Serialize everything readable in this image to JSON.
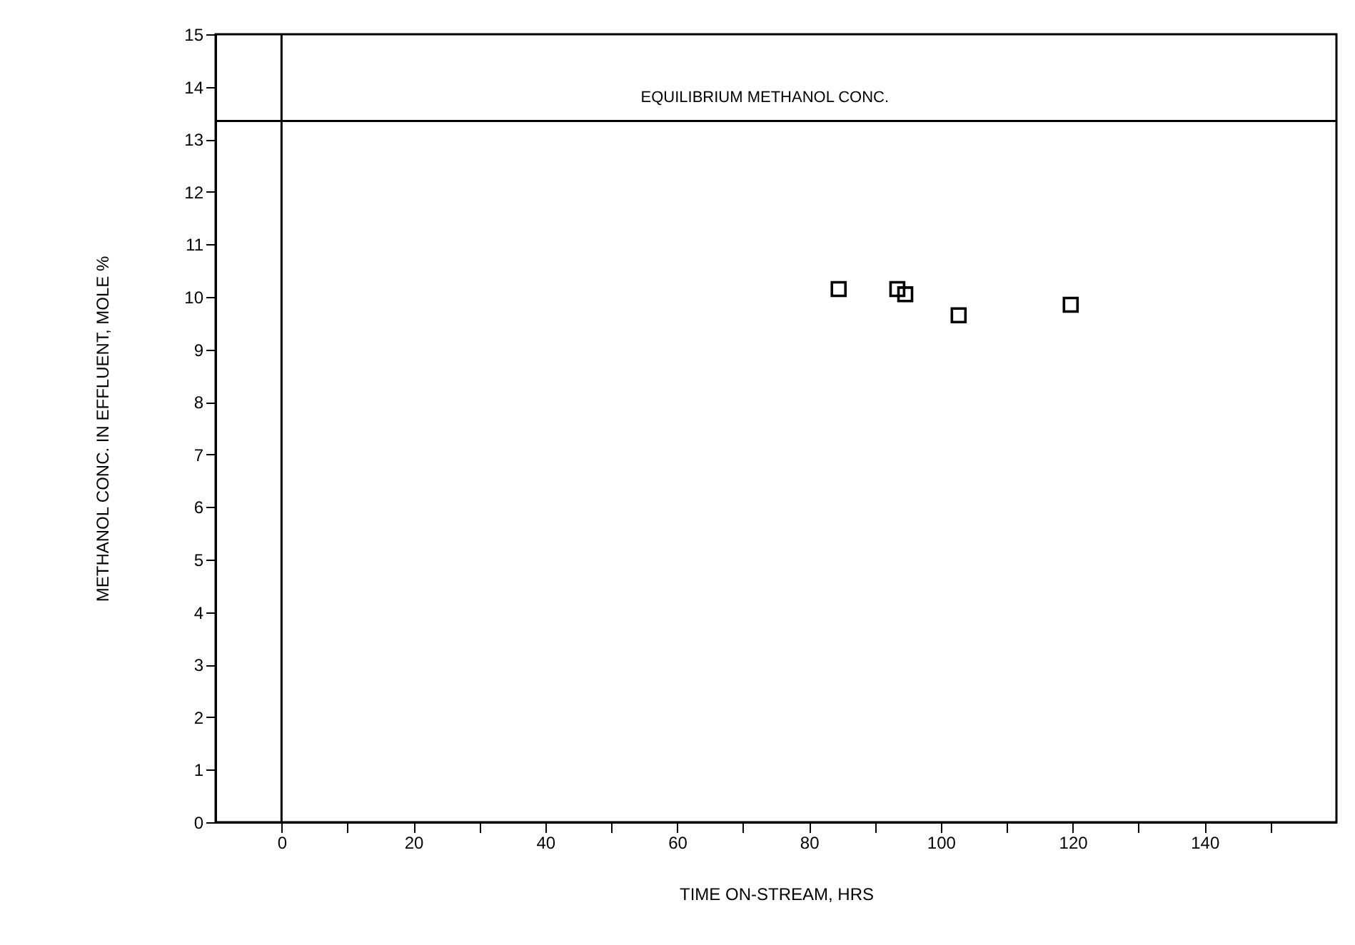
{
  "chart_data": {
    "type": "scatter",
    "xlabel": "TIME ON-STREAM, HRS",
    "ylabel": "METHANOL CONC. IN EFFLUENT, MOLE %",
    "x": [
      84.5,
      93.4,
      94.6,
      102.7,
      119.7
    ],
    "values": [
      10.15,
      10.15,
      10.05,
      9.65,
      9.85
    ],
    "color": "#000000",
    "marker": "square",
    "grid": false,
    "xlim": [
      -10,
      160
    ],
    "xticks": [
      0,
      {
        "value": 10,
        "label": null
      },
      20,
      {
        "value": 30,
        "label": null
      },
      40,
      {
        "value": 50,
        "label": null
      },
      60,
      {
        "value": 70,
        "label": null
      },
      80,
      {
        "value": 90,
        "label": null
      },
      100,
      {
        "value": 110,
        "label": null
      },
      120,
      {
        "value": 130,
        "label": null
      },
      140,
      {
        "value": 150,
        "label": null
      }
    ],
    "ylim": [
      0,
      15
    ],
    "yticks": [
      0,
      1,
      2,
      3,
      4,
      5,
      6,
      7,
      8,
      9,
      10,
      11,
      12,
      13,
      14,
      15
    ],
    "ref_lines": [
      {
        "axis": "y",
        "value": 13.35,
        "label": "EQUILIBRIUM METHANOL CONC."
      },
      {
        "axis": "x",
        "value": 0,
        "label": null
      }
    ]
  }
}
